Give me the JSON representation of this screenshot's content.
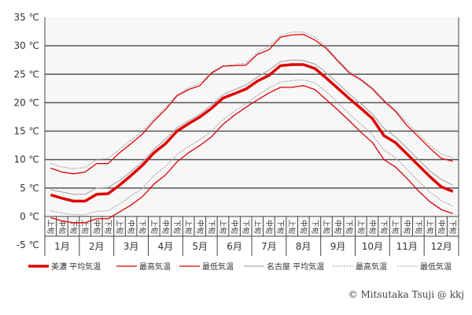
{
  "chart_data": {
    "type": "line",
    "title": "",
    "xlabel": "",
    "ylabel": "",
    "ylim": [
      -5,
      35
    ],
    "yticks": [
      35,
      30,
      25,
      20,
      15,
      10,
      5,
      0,
      -5
    ],
    "ytick_unit": "℃",
    "months": [
      "1月",
      "2月",
      "3月",
      "4月",
      "5月",
      "6月",
      "7月",
      "8月",
      "9月",
      "10月",
      "11月",
      "12月"
    ],
    "periods": [
      "上旬",
      "中旬",
      "下旬"
    ],
    "grid": "horizontal",
    "legend_placement": "bottom",
    "series": [
      {
        "name": "美濃 平均気温",
        "color": "#dd0000",
        "style": "thick",
        "values": [
          3.8,
          3.2,
          2.7,
          2.7,
          3.9,
          4.0,
          5.5,
          7.2,
          9.0,
          11.2,
          12.8,
          15.0,
          16.3,
          17.5,
          19.0,
          20.8,
          21.6,
          22.4,
          23.8,
          24.8,
          26.5,
          26.7,
          26.7,
          26.0,
          24.3,
          22.5,
          20.7,
          19.0,
          17.2,
          14.2,
          13.0,
          11.0,
          9.0,
          7.0,
          5.2,
          4.4
        ]
      },
      {
        "name": "最高気温",
        "color": "#dd0000",
        "style": "thin",
        "values": [
          8.5,
          7.8,
          7.5,
          7.8,
          9.3,
          9.3,
          11.2,
          12.8,
          14.5,
          16.8,
          18.8,
          21.2,
          22.3,
          23.0,
          25.2,
          26.4,
          26.5,
          26.6,
          28.5,
          29.3,
          31.5,
          31.9,
          32.0,
          31.0,
          29.5,
          27.3,
          25.2,
          24.0,
          22.4,
          20.3,
          18.5,
          16.0,
          14.0,
          12.0,
          10.2,
          9.7
        ]
      },
      {
        "name": "最低気温",
        "color": "#dd0000",
        "style": "thin",
        "values": [
          -0.2,
          -0.8,
          -1.1,
          -1.1,
          -0.4,
          -0.4,
          0.8,
          2.0,
          3.5,
          5.7,
          7.3,
          9.6,
          11.2,
          12.5,
          14.0,
          16.2,
          17.8,
          19.2,
          20.5,
          21.7,
          22.7,
          22.7,
          23.0,
          22.3,
          20.5,
          18.7,
          16.8,
          14.8,
          13.0,
          10.0,
          8.7,
          6.7,
          4.5,
          2.6,
          1.2,
          0.5
        ]
      },
      {
        "name": "名古屋 平均気温",
        "color": "#aaaaaa",
        "style": "solid",
        "values": [
          4.7,
          4.3,
          3.9,
          3.9,
          5.0,
          5.1,
          6.3,
          7.9,
          9.6,
          11.8,
          13.6,
          15.6,
          16.8,
          18.0,
          19.6,
          21.4,
          22.3,
          23.1,
          24.5,
          25.7,
          27.2,
          27.5,
          27.4,
          26.8,
          25.2,
          23.4,
          21.5,
          19.8,
          18.0,
          15.5,
          14.0,
          12.0,
          10.0,
          8.0,
          6.5,
          5.5
        ]
      },
      {
        "name": "最高気温",
        "color": "#999999",
        "style": "dotted",
        "values": [
          9.3,
          8.7,
          8.4,
          8.6,
          10.0,
          10.2,
          11.8,
          13.4,
          15.0,
          17.2,
          19.2,
          21.4,
          22.6,
          23.4,
          25.4,
          26.5,
          26.7,
          27.0,
          28.8,
          29.9,
          31.8,
          32.4,
          32.4,
          31.5,
          29.8,
          27.5,
          25.5,
          24.2,
          22.7,
          20.5,
          18.8,
          16.5,
          14.5,
          12.5,
          11.0,
          10.3
        ]
      },
      {
        "name": "最低気温",
        "color": "#999999",
        "style": "dotted",
        "values": [
          1.0,
          0.6,
          0.3,
          0.3,
          0.9,
          1.0,
          2.2,
          3.6,
          5.0,
          7.2,
          8.8,
          10.9,
          12.3,
          13.5,
          15.0,
          17.0,
          18.5,
          19.8,
          21.3,
          22.6,
          23.6,
          23.9,
          24.0,
          23.5,
          21.9,
          20.0,
          18.0,
          16.2,
          14.4,
          11.7,
          10.3,
          8.3,
          6.2,
          4.3,
          2.8,
          1.8
        ]
      }
    ]
  },
  "copyright": "© Mitsutaka Tsuji @ kkj"
}
